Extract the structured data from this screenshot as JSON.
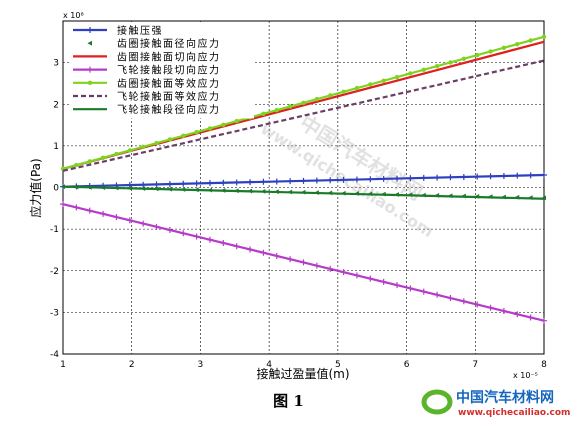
{
  "chart_data": {
    "type": "line",
    "xlabel": "接触过盈量值(m)",
    "ylabel": "应力值(Pa)",
    "x_exponent": "x 10⁻⁵",
    "y_exponent": "x 10⁸",
    "xlim": [
      1,
      8
    ],
    "ylim": [
      -4,
      4
    ],
    "xticks": [
      "1",
      "2",
      "3",
      "4",
      "5",
      "6",
      "7",
      "8"
    ],
    "yticks": [
      "-4",
      "-3",
      "-2",
      "-1",
      "0",
      "1",
      "2",
      "3"
    ],
    "grid": true,
    "legend_position": "top-left",
    "series": [
      {
        "name": "接触压强",
        "color": "#2e3fbf",
        "marker": "plus",
        "style": "solid",
        "x": [
          1,
          8
        ],
        "y": [
          0.02,
          0.3
        ]
      },
      {
        "name": "齿圈接触面径向应力",
        "color": "#1f7a2b",
        "marker": "triangle",
        "style": "none",
        "x": [
          1,
          8
        ],
        "y": [
          0.02,
          -0.25
        ]
      },
      {
        "name": "齿圈接触面切向应力",
        "color": "#e01f1f",
        "marker": "none",
        "style": "solid",
        "x": [
          1,
          8
        ],
        "y": [
          0.45,
          3.5
        ]
      },
      {
        "name": "飞轮接触段切向应力",
        "color": "#b43cc8",
        "marker": "plus",
        "style": "solid",
        "x": [
          1,
          8
        ],
        "y": [
          -0.4,
          -3.2
        ]
      },
      {
        "name": "齿圈接触面等效应力",
        "color": "#7ed321",
        "marker": "dot",
        "style": "solid",
        "x": [
          1,
          8
        ],
        "y": [
          0.45,
          3.62
        ]
      },
      {
        "name": "飞轮接触面等效应力",
        "color": "#6b3e66",
        "marker": "none",
        "style": "dashed",
        "x": [
          1,
          8
        ],
        "y": [
          0.4,
          3.05
        ]
      },
      {
        "name": "飞轮接触段径向应力",
        "color": "#1a7a2a",
        "marker": "none",
        "style": "solid",
        "x": [
          1,
          8
        ],
        "y": [
          0.02,
          -0.27
        ]
      }
    ]
  },
  "caption": "图 1",
  "watermark": {
    "text_cn": "中国汽车材料网",
    "text_url": "www.qichecailiao.com"
  },
  "logo": {
    "text_cn": "中国汽车材料网",
    "text_url": "www.qichecailiao.com"
  }
}
